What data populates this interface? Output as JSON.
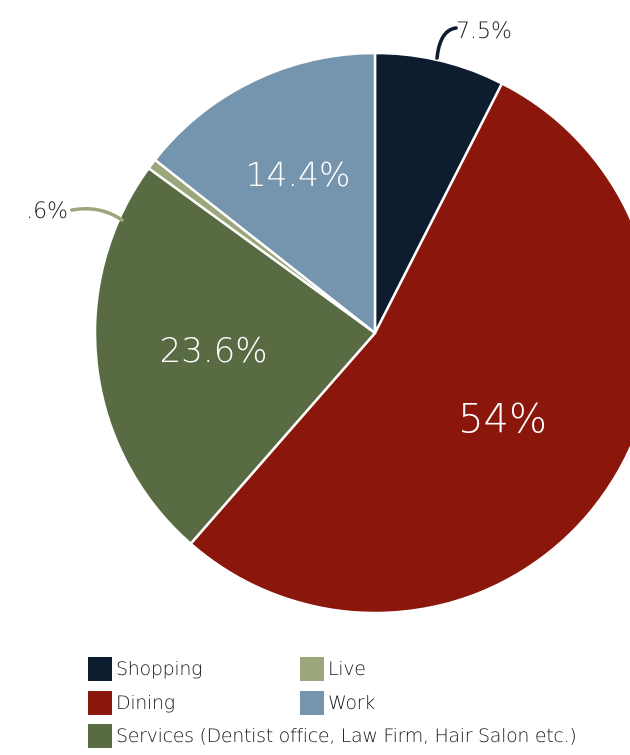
{
  "chart_data": {
    "type": "pie",
    "slices": [
      {
        "label": "Shopping",
        "value": 7.5,
        "display": "7.5%",
        "color": "#0e1c2f",
        "label_position": "outside"
      },
      {
        "label": "Dining",
        "value": 54,
        "display": "54%",
        "color": "#8b170c",
        "label_position": "inside"
      },
      {
        "label": "Services (Dentist office, Law Firm, Hair Salon etc.)",
        "value": 23.6,
        "display": "23.6%",
        "color": "#586b43",
        "label_position": "inside"
      },
      {
        "label": "Live",
        "value": 0.6,
        "display": ".6%",
        "color": "#9ba67a",
        "label_position": "outside"
      },
      {
        "label": "Work",
        "value": 14.4,
        "display": "14.4%",
        "color": "#7495ad",
        "label_position": "inside"
      }
    ],
    "start": "12 o'clock",
    "direction": "clockwise",
    "legend_position": "bottom"
  },
  "legend": {
    "items": [
      {
        "label": "Shopping",
        "color": "#0e1c2f"
      },
      {
        "label": "Live",
        "color": "#9ba67a"
      },
      {
        "label": "Dining",
        "color": "#8b170c"
      },
      {
        "label": "Work",
        "color": "#7495ad"
      },
      {
        "label": "Services (Dentist office, Law Firm, Hair Salon etc.)",
        "color": "#586b43"
      }
    ]
  }
}
